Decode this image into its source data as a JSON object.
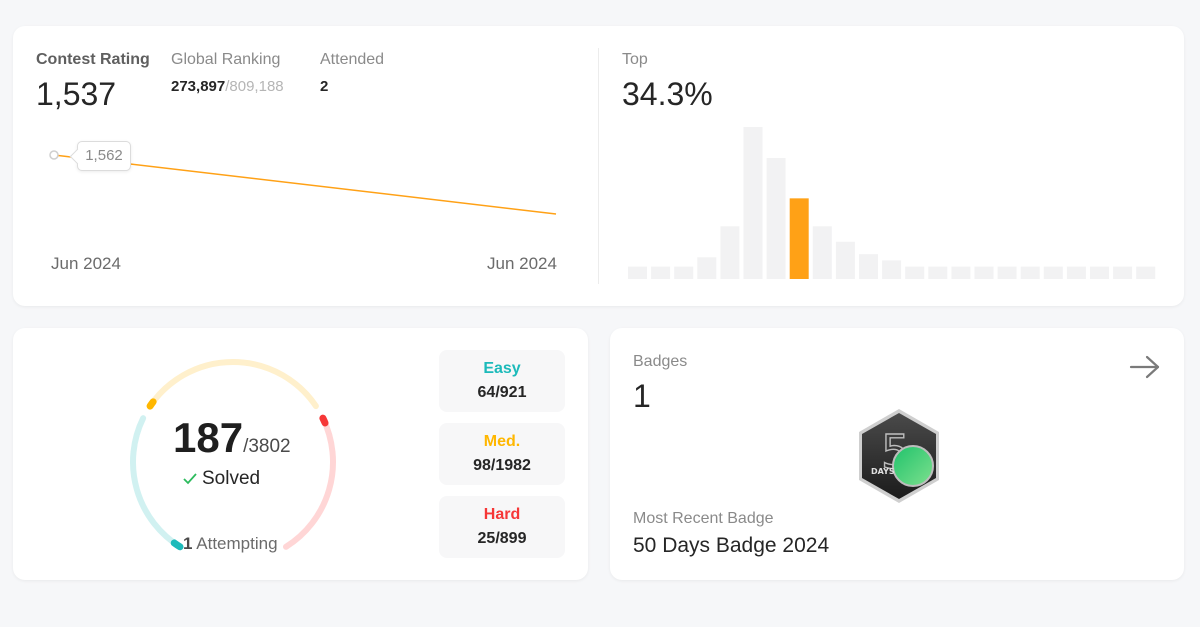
{
  "contest": {
    "rating_label": "Contest Rating",
    "rating_value": "1,537",
    "global_ranking_label": "Global Ranking",
    "global_rank": "273,897",
    "global_total": "/809,188",
    "attended_label": "Attended",
    "attended_value": "2",
    "top_label": "Top",
    "top_value": "34.3%",
    "line_chart": {
      "tooltip": "1,562",
      "x_start_label": "Jun 2024",
      "x_end_label": "Jun 2024",
      "points": [
        1562,
        1537
      ],
      "color": "#ffa116"
    },
    "histogram": {
      "values": [
        4,
        4,
        4,
        7,
        17,
        49,
        39,
        26,
        17,
        12,
        8,
        6,
        4,
        4,
        4,
        4,
        4,
        4,
        4,
        4,
        4,
        4,
        4
      ],
      "highlight_index": 7,
      "bar_color": "#f2f2f3",
      "highlight_color": "#ffa116"
    }
  },
  "solved": {
    "count": "187",
    "total": "/3802",
    "solved_label": "Solved",
    "attempting_count": "1",
    "attempting_label": "Attempting",
    "difficulties": [
      {
        "name": "Easy",
        "value": "64/921",
        "color": "#1cbaba",
        "track_color": "#d1f1f1"
      },
      {
        "name": "Med.",
        "value": "98/1982",
        "color": "#ffb700",
        "track_color": "#fff0cc"
      },
      {
        "name": "Hard",
        "value": "25/899",
        "color": "#f63737",
        "track_color": "#ffd6d6"
      }
    ]
  },
  "badges": {
    "label": "Badges",
    "count": "1",
    "recent_label": "Most Recent Badge",
    "recent_name": "50 Days Badge 2024",
    "badge_numeral": "5",
    "badge_word": "DAYS",
    "arrow_icon": "arrow-right-icon"
  }
}
